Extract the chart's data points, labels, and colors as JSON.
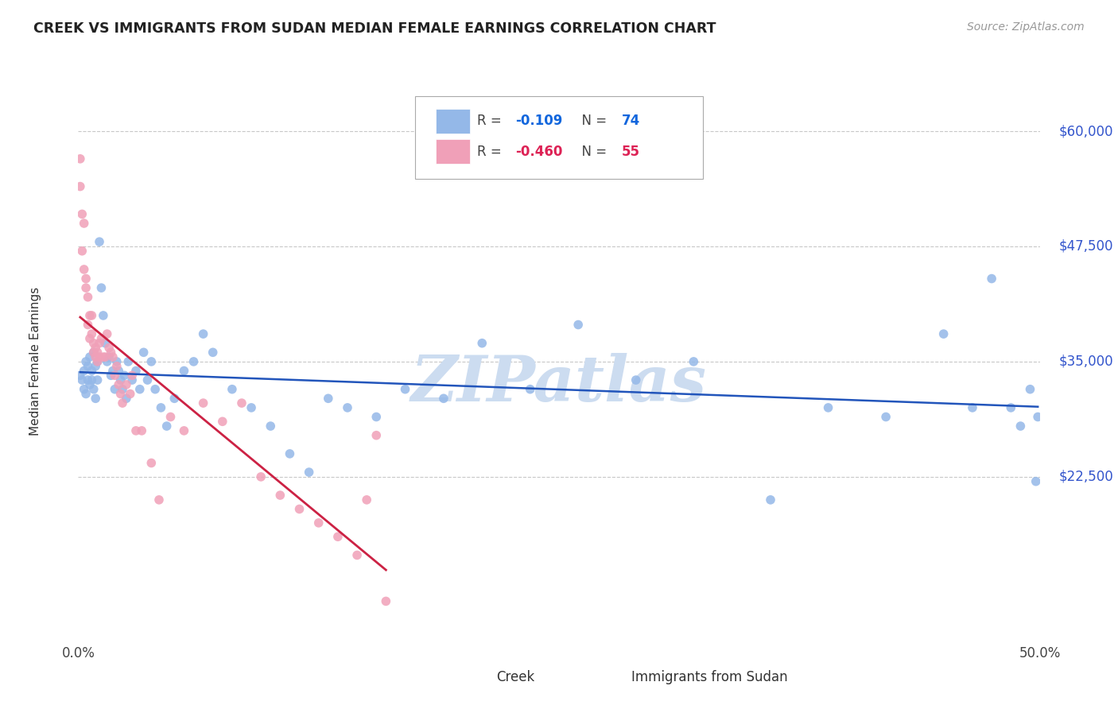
{
  "title": "CREEK VS IMMIGRANTS FROM SUDAN MEDIAN FEMALE EARNINGS CORRELATION CHART",
  "source": "Source: ZipAtlas.com",
  "ylabel": "Median Female Earnings",
  "xlim": [
    0.0,
    0.5
  ],
  "ylim": [
    5000,
    65000
  ],
  "yticks": [
    22500,
    35000,
    47500,
    60000
  ],
  "ytick_labels": [
    "$22,500",
    "$35,000",
    "$47,500",
    "$60,000"
  ],
  "background_color": "#ffffff",
  "grid_color": "#c8c8c8",
  "creek_color": "#94B8E8",
  "sudan_color": "#F0A0B8",
  "creek_line_color": "#2255BB",
  "sudan_line_color": "#CC2244",
  "creek_R": "-0.109",
  "creek_N": "74",
  "sudan_R": "-0.460",
  "sudan_N": "55",
  "creek_R_color": "#1166DD",
  "creek_N_color": "#1166DD",
  "sudan_R_color": "#DD2255",
  "sudan_N_color": "#DD2255",
  "watermark": "ZIPatlas",
  "watermark_color": "#ccdcf0",
  "creek_scatter_x": [
    0.001,
    0.002,
    0.003,
    0.003,
    0.004,
    0.004,
    0.005,
    0.005,
    0.006,
    0.006,
    0.007,
    0.007,
    0.008,
    0.008,
    0.009,
    0.009,
    0.01,
    0.01,
    0.011,
    0.012,
    0.013,
    0.014,
    0.015,
    0.016,
    0.017,
    0.018,
    0.019,
    0.02,
    0.021,
    0.022,
    0.023,
    0.024,
    0.025,
    0.026,
    0.028,
    0.03,
    0.032,
    0.034,
    0.036,
    0.038,
    0.04,
    0.043,
    0.046,
    0.05,
    0.055,
    0.06,
    0.065,
    0.07,
    0.08,
    0.09,
    0.1,
    0.11,
    0.12,
    0.13,
    0.14,
    0.155,
    0.17,
    0.19,
    0.21,
    0.235,
    0.26,
    0.29,
    0.32,
    0.36,
    0.39,
    0.42,
    0.45,
    0.465,
    0.475,
    0.485,
    0.49,
    0.495,
    0.498,
    0.499
  ],
  "creek_scatter_y": [
    33500,
    33000,
    34000,
    32000,
    35000,
    31500,
    34500,
    33000,
    35500,
    32500,
    34000,
    33000,
    36000,
    32000,
    34500,
    31000,
    35000,
    33000,
    48000,
    43000,
    40000,
    37000,
    35000,
    35500,
    33500,
    34000,
    32000,
    35000,
    34000,
    33000,
    32000,
    33500,
    31000,
    35000,
    33000,
    34000,
    32000,
    36000,
    33000,
    35000,
    32000,
    30000,
    28000,
    31000,
    34000,
    35000,
    38000,
    36000,
    32000,
    30000,
    28000,
    25000,
    23000,
    31000,
    30000,
    29000,
    32000,
    31000,
    37000,
    32000,
    39000,
    33000,
    35000,
    20000,
    30000,
    29000,
    38000,
    30000,
    44000,
    30000,
    28000,
    32000,
    22000,
    29000
  ],
  "sudan_scatter_x": [
    0.001,
    0.001,
    0.002,
    0.002,
    0.003,
    0.003,
    0.004,
    0.004,
    0.005,
    0.005,
    0.006,
    0.006,
    0.007,
    0.007,
    0.008,
    0.008,
    0.009,
    0.009,
    0.01,
    0.01,
    0.011,
    0.011,
    0.012,
    0.013,
    0.014,
    0.015,
    0.016,
    0.017,
    0.018,
    0.019,
    0.02,
    0.021,
    0.022,
    0.023,
    0.025,
    0.027,
    0.028,
    0.03,
    0.033,
    0.038,
    0.042,
    0.048,
    0.055,
    0.065,
    0.075,
    0.085,
    0.095,
    0.105,
    0.115,
    0.125,
    0.135,
    0.145,
    0.15,
    0.155,
    0.16
  ],
  "sudan_scatter_y": [
    57000,
    54000,
    51000,
    47000,
    50000,
    45000,
    44000,
    43000,
    42000,
    39000,
    40000,
    37500,
    40000,
    38000,
    37000,
    36000,
    36500,
    35500,
    35000,
    36000,
    35500,
    37000,
    37500,
    35500,
    35500,
    38000,
    36500,
    36000,
    35500,
    33500,
    34500,
    32500,
    31500,
    30500,
    32500,
    31500,
    33500,
    27500,
    27500,
    24000,
    20000,
    29000,
    27500,
    30500,
    28500,
    30500,
    22500,
    20500,
    19000,
    17500,
    16000,
    14000,
    20000,
    27000,
    9000
  ]
}
